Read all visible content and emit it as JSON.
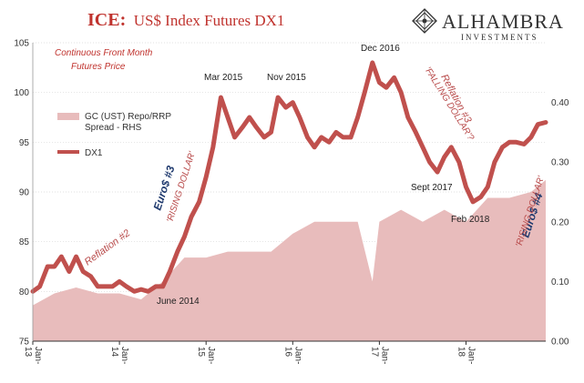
{
  "chart_data": {
    "type": "line",
    "title_prefix": "ICE:",
    "title_rest": "US$ Index Futures DX1",
    "subtitle_line1": "Continuous  Front Month",
    "subtitle_line2": "Futures Price",
    "left_axis": {
      "ylim": [
        75,
        105
      ],
      "ticks": [
        "75",
        "80",
        "85",
        "90",
        "95",
        "100",
        "105"
      ]
    },
    "right_axis": {
      "ylim": [
        0.0,
        0.5
      ],
      "ticks": [
        "0.00",
        "0.10",
        "0.20",
        "0.30",
        "0.40"
      ]
    },
    "x_axis": {
      "xlim": [
        2013.0,
        2018.92
      ],
      "ticks": [
        {
          "x": 2013.0,
          "line1": "Jan-",
          "line2": "13"
        },
        {
          "x": 2014.0,
          "line1": "Jan-",
          "line2": "14"
        },
        {
          "x": 2015.0,
          "line1": "Jan-",
          "line2": "15"
        },
        {
          "x": 2016.0,
          "line1": "Jan-",
          "line2": "16"
        },
        {
          "x": 2017.0,
          "line1": "Jan-",
          "line2": "17"
        },
        {
          "x": 2018.0,
          "line1": "Jan-",
          "line2": "18"
        }
      ]
    },
    "grid": true,
    "legend": {
      "position": "upper-left",
      "entries": [
        {
          "line1": "GC (UST) Repo/RRP",
          "line2": "Spread - RHS",
          "color": "#e8bcbc",
          "kind": "area"
        },
        {
          "line1": "DX1",
          "line2": "",
          "color": "#c0504d",
          "kind": "line"
        }
      ]
    },
    "series": [
      {
        "name": "DX1",
        "axis": "left",
        "color": "#c0504d",
        "x": [
          2013.0,
          2013.08,
          2013.17,
          2013.25,
          2013.33,
          2013.42,
          2013.5,
          2013.58,
          2013.67,
          2013.75,
          2013.83,
          2013.92,
          2014.0,
          2014.08,
          2014.17,
          2014.25,
          2014.33,
          2014.42,
          2014.5,
          2014.58,
          2014.67,
          2014.75,
          2014.83,
          2014.92,
          2015.0,
          2015.08,
          2015.17,
          2015.25,
          2015.33,
          2015.42,
          2015.5,
          2015.58,
          2015.67,
          2015.75,
          2015.83,
          2015.92,
          2016.0,
          2016.08,
          2016.17,
          2016.25,
          2016.33,
          2016.42,
          2016.5,
          2016.58,
          2016.67,
          2016.75,
          2016.83,
          2016.92,
          2017.0,
          2017.08,
          2017.17,
          2017.25,
          2017.33,
          2017.42,
          2017.5,
          2017.58,
          2017.67,
          2017.75,
          2017.83,
          2017.92,
          2018.0,
          2018.08,
          2018.17,
          2018.25,
          2018.33,
          2018.42,
          2018.5,
          2018.58,
          2018.67,
          2018.75,
          2018.83,
          2018.92
        ],
        "values": [
          80.0,
          80.5,
          82.5,
          82.5,
          83.5,
          82.0,
          83.5,
          82.0,
          81.5,
          80.5,
          80.5,
          80.5,
          81.0,
          80.5,
          80.0,
          80.2,
          80.0,
          80.5,
          80.5,
          82.0,
          84.0,
          85.5,
          87.5,
          89.0,
          91.5,
          94.5,
          99.5,
          97.5,
          95.5,
          96.5,
          97.5,
          96.5,
          95.5,
          96.0,
          99.5,
          98.5,
          99.0,
          97.5,
          95.5,
          94.5,
          95.5,
          95.0,
          96.0,
          95.5,
          95.5,
          97.5,
          100.0,
          103.0,
          101.0,
          100.5,
          101.5,
          100.0,
          97.5,
          96.0,
          94.5,
          93.0,
          92.0,
          93.5,
          94.5,
          93.0,
          90.5,
          89.0,
          89.5,
          90.5,
          93.0,
          94.5,
          95.0,
          95.0,
          94.8,
          95.5,
          96.8,
          97.0
        ]
      },
      {
        "name": "GC (UST) Repo/RRP Spread - RHS",
        "axis": "right",
        "color": "#e8bcbc",
        "x": [
          2013.0,
          2013.25,
          2013.5,
          2013.75,
          2014.0,
          2014.25,
          2014.5,
          2014.75,
          2015.0,
          2015.25,
          2015.5,
          2015.75,
          2016.0,
          2016.25,
          2016.5,
          2016.75,
          2016.92,
          2017.0,
          2017.25,
          2017.5,
          2017.75,
          2018.0,
          2018.25,
          2018.5,
          2018.75,
          2018.92
        ],
        "values": [
          0.06,
          0.08,
          0.09,
          0.08,
          0.08,
          0.07,
          0.1,
          0.14,
          0.14,
          0.15,
          0.15,
          0.15,
          0.18,
          0.2,
          0.2,
          0.2,
          0.1,
          0.2,
          0.22,
          0.2,
          0.22,
          0.2,
          0.24,
          0.24,
          0.25,
          0.27
        ]
      }
    ],
    "annotations": {
      "mar2015": "Mar 2015",
      "nov2015": "Nov 2015",
      "dec2016": "Dec 2016",
      "june2014": "June 2014",
      "sept2017": "Sept 2017",
      "feb2018": "Feb 2018",
      "reflation2": "Reflation #2",
      "reflation3": "Reflation #3",
      "falling_dollar": "'FALLING DOLLAR'?",
      "euro3": "Euro$ #3",
      "rising_dollar_1": "'RISING DOLLAR'",
      "euro4": "Euro$ #4",
      "rising_dollar_2": "'RISING DOLLAR'"
    }
  },
  "logo": {
    "name": "ALHAMBRA",
    "sub": "INVESTMENTS"
  }
}
